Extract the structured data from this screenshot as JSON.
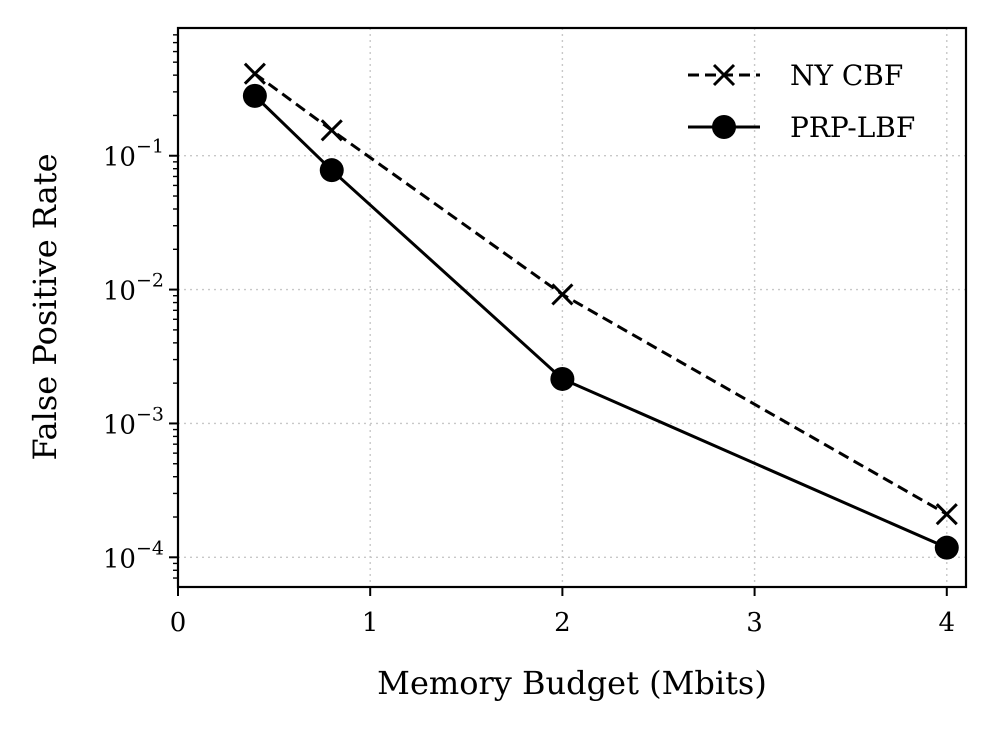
{
  "chart_data": {
    "type": "line",
    "xlabel": "Memory Budget (Mbits)",
    "ylabel": "False Positive Rate",
    "xlim": [
      0,
      4.1
    ],
    "ylim": [
      6e-05,
      0.9
    ],
    "yscale": "log",
    "x_ticks": [
      "0",
      "1",
      "2",
      "3",
      "4"
    ],
    "y_ticks": [
      {
        "base": "10",
        "exp": "−1",
        "value": 0.1
      },
      {
        "base": "10",
        "exp": "−2",
        "value": 0.01
      },
      {
        "base": "10",
        "exp": "−3",
        "value": 0.001
      },
      {
        "base": "10",
        "exp": "−4",
        "value": 0.0001
      }
    ],
    "grid": true,
    "legend_position": "top-right",
    "series": [
      {
        "name": "NY CBF",
        "x": [
          0.4,
          0.8,
          2,
          4
        ],
        "y": [
          0.41,
          0.155,
          0.0092,
          0.00021
        ],
        "line_style": "dashed",
        "marker": "x",
        "color": "#000000"
      },
      {
        "name": "PRP-LBF",
        "x": [
          0.4,
          0.8,
          2,
          4
        ],
        "y": [
          0.28,
          0.078,
          0.00215,
          0.000118
        ],
        "line_style": "solid",
        "marker": "circle",
        "color": "#000000"
      }
    ]
  }
}
